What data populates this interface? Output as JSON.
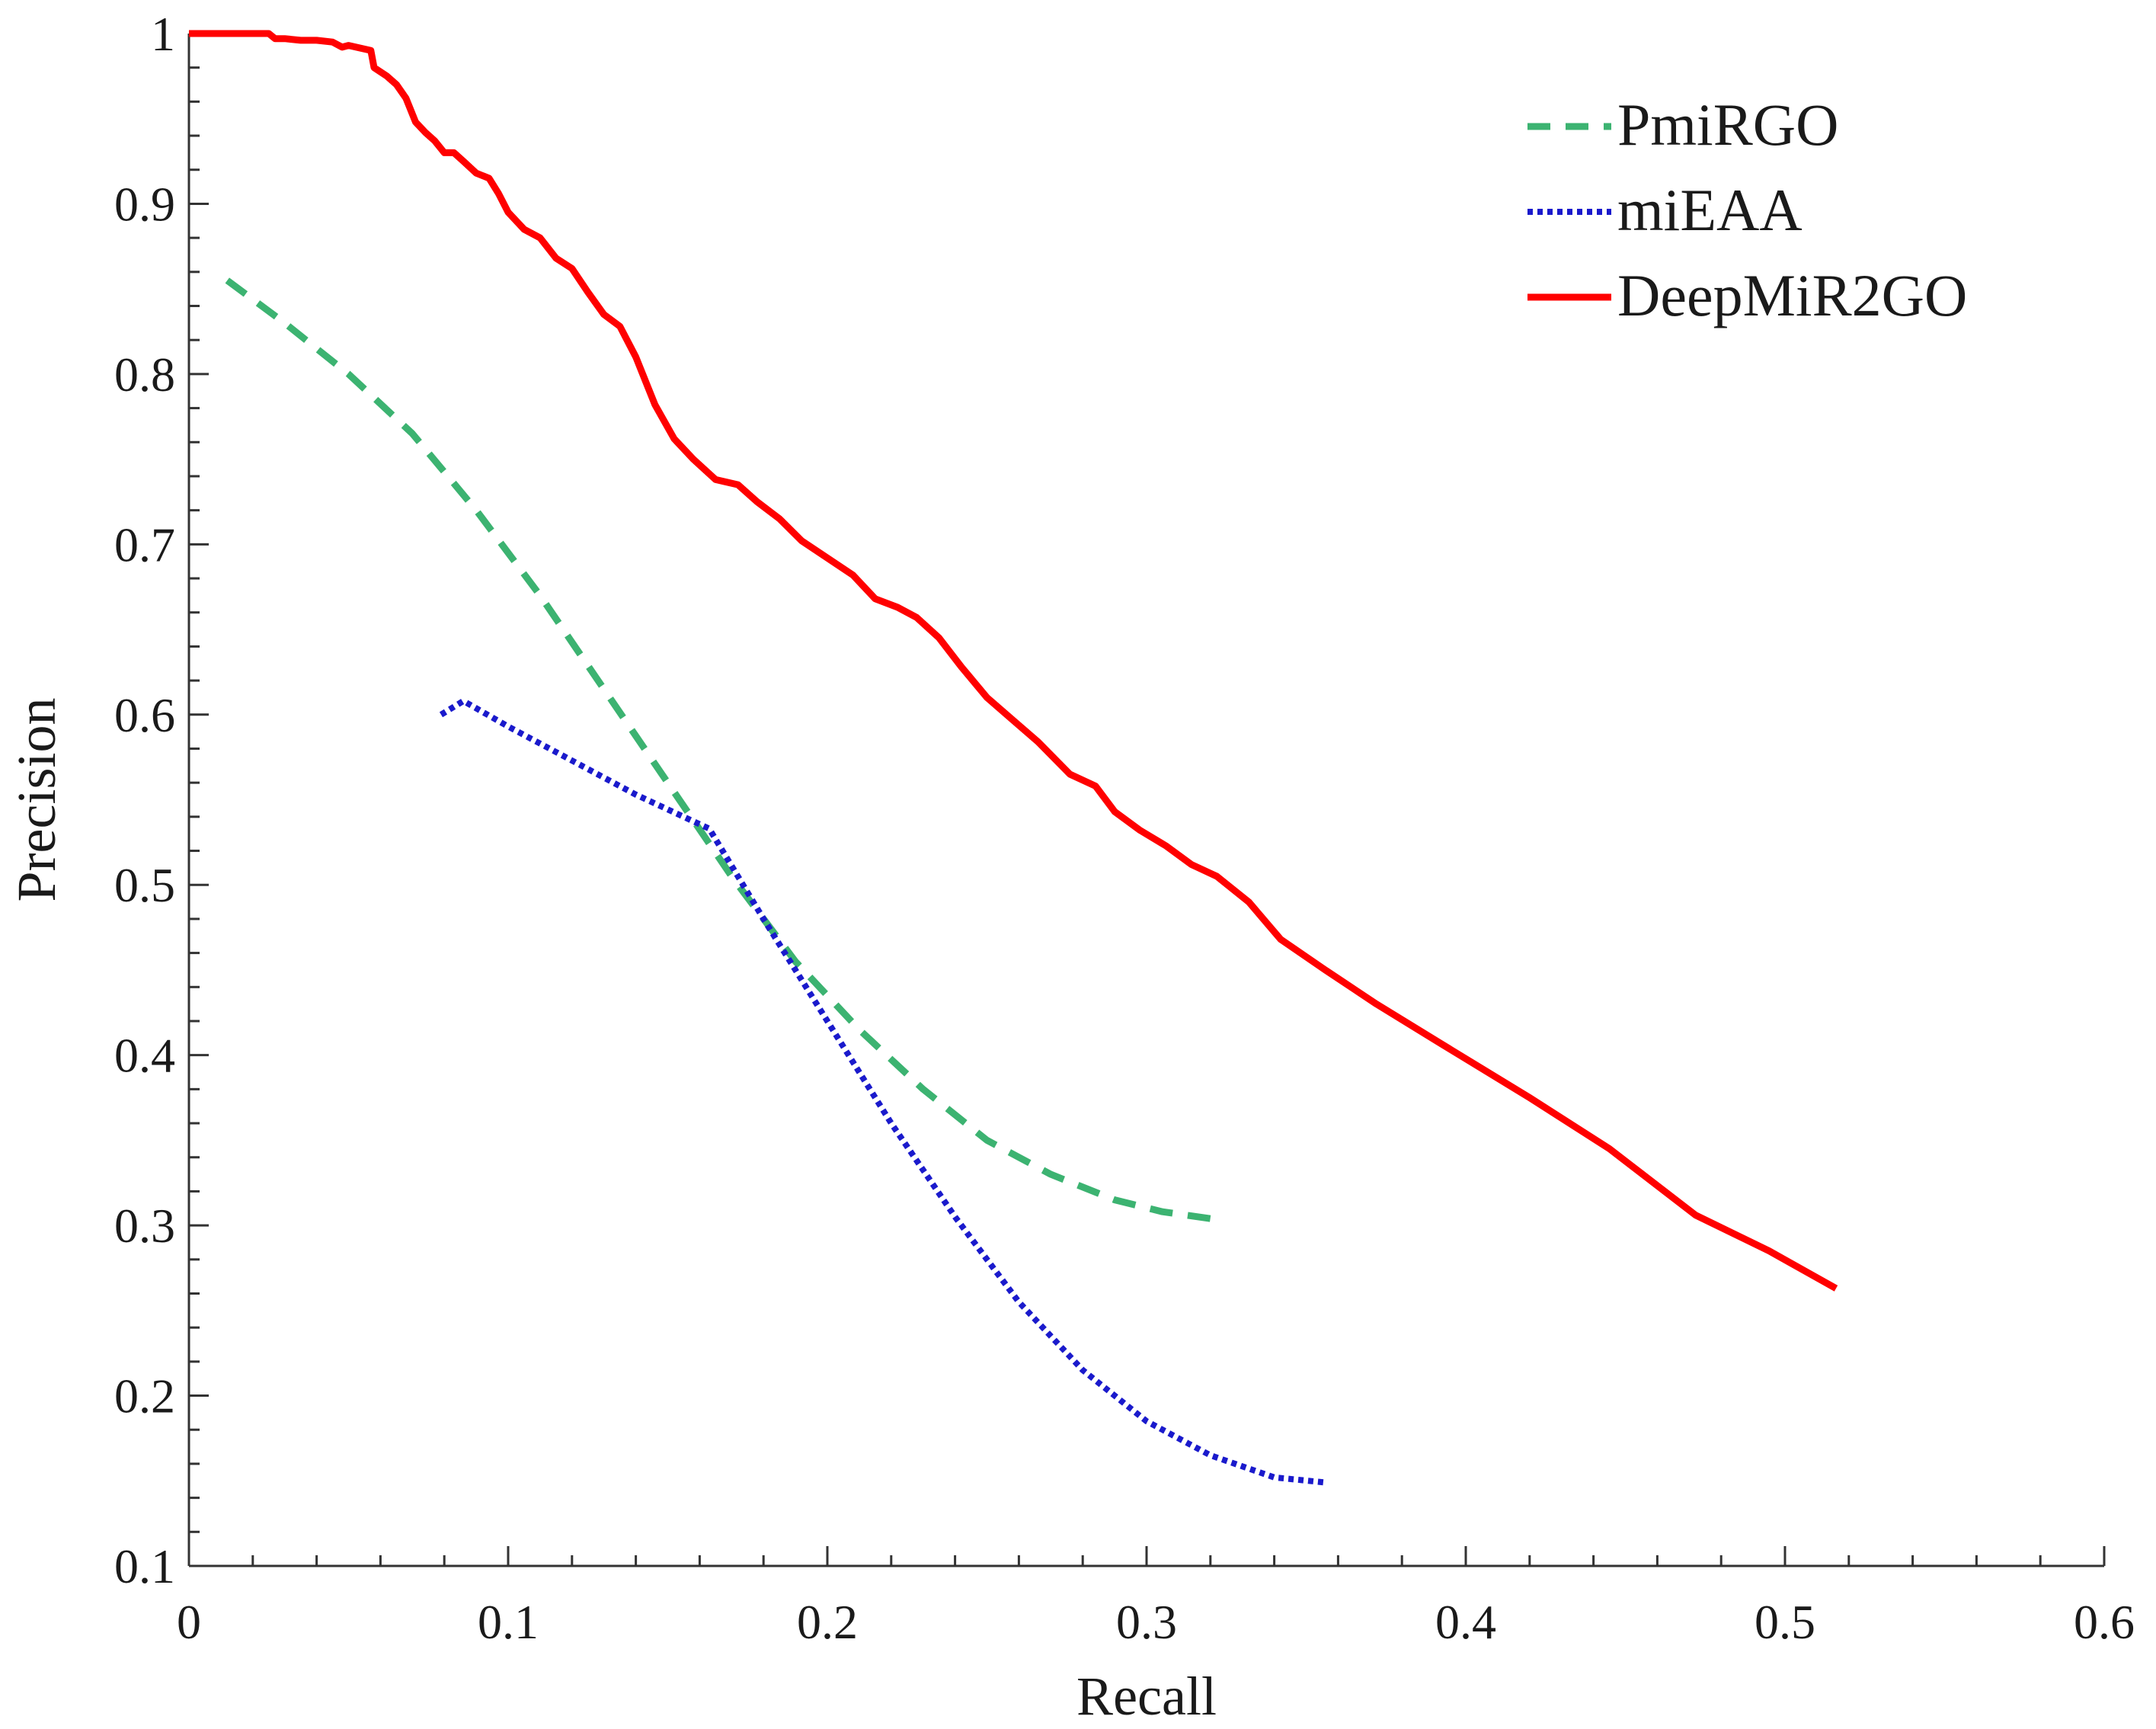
{
  "chart_data": {
    "type": "line",
    "title": "",
    "xlabel": "Recall",
    "ylabel": "Precision",
    "xlim": [
      0,
      0.6
    ],
    "ylim": [
      0.1,
      1
    ],
    "xticks": [
      0,
      0.1,
      0.2,
      0.3,
      0.4,
      0.5,
      0.6
    ],
    "xtick_labels": [
      "0",
      "0.1",
      "0.2",
      "0.3",
      "0.4",
      "0.5",
      "0.6"
    ],
    "yticks": [
      0.1,
      0.2,
      0.3,
      0.4,
      0.5,
      0.6,
      0.7,
      0.8,
      0.9,
      1
    ],
    "ytick_labels": [
      "0.1",
      "0.2",
      "0.3",
      "0.4",
      "0.5",
      "0.6",
      "0.7",
      "0.8",
      "0.9",
      "1"
    ],
    "grid": false,
    "legend_position": "top-right",
    "series": [
      {
        "name": "PmiRGO",
        "color": "#3cb371",
        "style": "dashed",
        "x": [
          0.012,
          0.03,
          0.05,
          0.07,
          0.09,
          0.11,
          0.13,
          0.15,
          0.17,
          0.19,
          0.21,
          0.23,
          0.25,
          0.27,
          0.29,
          0.305,
          0.32
        ],
        "y": [
          0.855,
          0.83,
          0.8,
          0.765,
          0.72,
          0.67,
          0.615,
          0.56,
          0.505,
          0.455,
          0.415,
          0.38,
          0.35,
          0.33,
          0.315,
          0.308,
          0.304
        ]
      },
      {
        "name": "miEAA",
        "color": "#1a1acc",
        "style": "dotted",
        "x": [
          0.079,
          0.086,
          0.1,
          0.12,
          0.14,
          0.163,
          0.18,
          0.2,
          0.22,
          0.24,
          0.26,
          0.28,
          0.3,
          0.32,
          0.34,
          0.356
        ],
        "y": [
          0.6,
          0.608,
          0.593,
          0.573,
          0.553,
          0.533,
          0.48,
          0.42,
          0.36,
          0.305,
          0.255,
          0.215,
          0.185,
          0.165,
          0.152,
          0.149
        ]
      },
      {
        "name": "DeepMiR2GO",
        "color": "#ff0000",
        "style": "solid",
        "x": [
          0.0,
          0.025,
          0.027,
          0.03,
          0.035,
          0.04,
          0.045,
          0.048,
          0.05,
          0.057,
          0.058,
          0.062,
          0.065,
          0.068,
          0.071,
          0.074,
          0.077,
          0.08,
          0.083,
          0.086,
          0.09,
          0.094,
          0.097,
          0.1,
          0.105,
          0.11,
          0.115,
          0.12,
          0.125,
          0.13,
          0.135,
          0.14,
          0.146,
          0.152,
          0.158,
          0.165,
          0.172,
          0.178,
          0.185,
          0.192,
          0.2,
          0.208,
          0.215,
          0.222,
          0.228,
          0.235,
          0.242,
          0.25,
          0.258,
          0.266,
          0.276,
          0.284,
          0.29,
          0.298,
          0.306,
          0.314,
          0.322,
          0.332,
          0.342,
          0.356,
          0.372,
          0.392,
          0.42,
          0.445,
          0.472,
          0.495,
          0.516
        ],
        "y": [
          1.0,
          1.0,
          0.997,
          0.997,
          0.996,
          0.996,
          0.995,
          0.992,
          0.993,
          0.99,
          0.98,
          0.975,
          0.97,
          0.962,
          0.948,
          0.942,
          0.937,
          0.93,
          0.93,
          0.925,
          0.918,
          0.915,
          0.906,
          0.895,
          0.885,
          0.88,
          0.868,
          0.862,
          0.848,
          0.835,
          0.828,
          0.81,
          0.782,
          0.762,
          0.75,
          0.738,
          0.735,
          0.725,
          0.715,
          0.702,
          0.692,
          0.682,
          0.668,
          0.663,
          0.657,
          0.645,
          0.628,
          0.61,
          0.597,
          0.584,
          0.565,
          0.558,
          0.543,
          0.532,
          0.523,
          0.512,
          0.505,
          0.49,
          0.468,
          0.45,
          0.43,
          0.407,
          0.375,
          0.345,
          0.306,
          0.285,
          0.263
        ]
      }
    ]
  }
}
